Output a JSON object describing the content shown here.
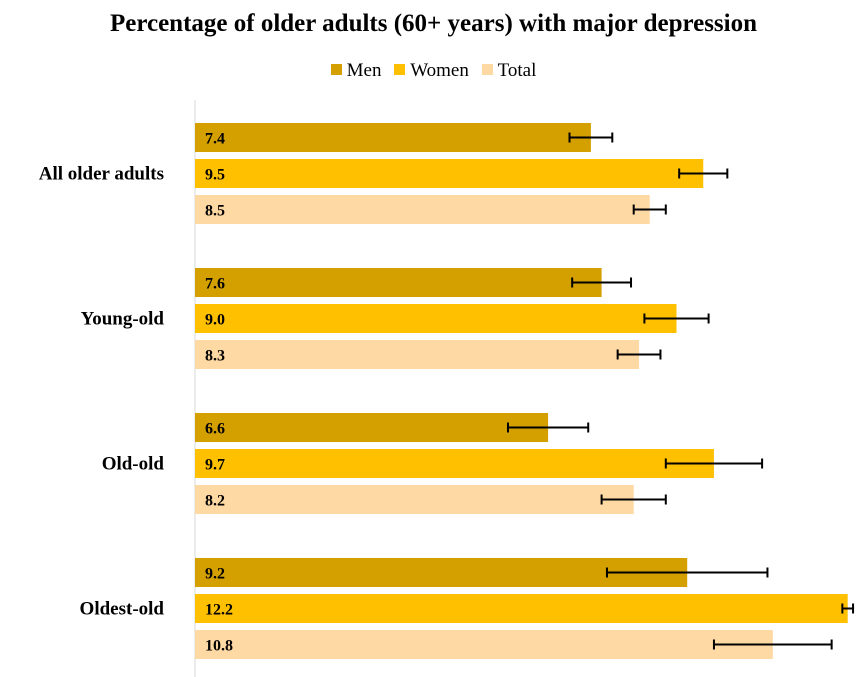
{
  "chart_data": {
    "type": "bar",
    "orientation": "horizontal",
    "title": "Percentage of older adults (60+ years) with major depression",
    "xlabel": "",
    "ylabel": "",
    "categories": [
      "All older adults",
      "Young-old",
      "Old-old",
      "Oldest-old"
    ],
    "series": [
      {
        "name": "Men",
        "color": "#D4A000",
        "values": [
          7.4,
          7.6,
          6.6,
          9.2
        ],
        "err_low": [
          0.4,
          0.55,
          0.75,
          1.5
        ],
        "err_high": [
          0.4,
          0.55,
          0.75,
          1.5
        ]
      },
      {
        "name": "Women",
        "color": "#FFC000",
        "values": [
          9.5,
          9.0,
          9.7,
          12.2
        ],
        "err_low": [
          0.45,
          0.6,
          0.9,
          0.1
        ],
        "err_high": [
          0.45,
          0.6,
          0.9,
          0.1
        ]
      },
      {
        "name": "Total",
        "color": "#FFD9A3",
        "values": [
          8.5,
          8.3,
          8.2,
          10.8
        ],
        "err_low": [
          0.3,
          0.4,
          0.6,
          1.1
        ],
        "err_high": [
          0.3,
          0.4,
          0.6,
          1.1
        ]
      }
    ],
    "value_labels": [
      [
        "7.4",
        "9.5",
        "8.5"
      ],
      [
        "7.6",
        "9.0",
        "8.3"
      ],
      [
        "6.6",
        "9.7",
        "8.2"
      ],
      [
        "9.2",
        "12.2",
        "10.8"
      ]
    ],
    "xlim": [
      0,
      12.5
    ],
    "grid": false,
    "legend_position": "top"
  }
}
